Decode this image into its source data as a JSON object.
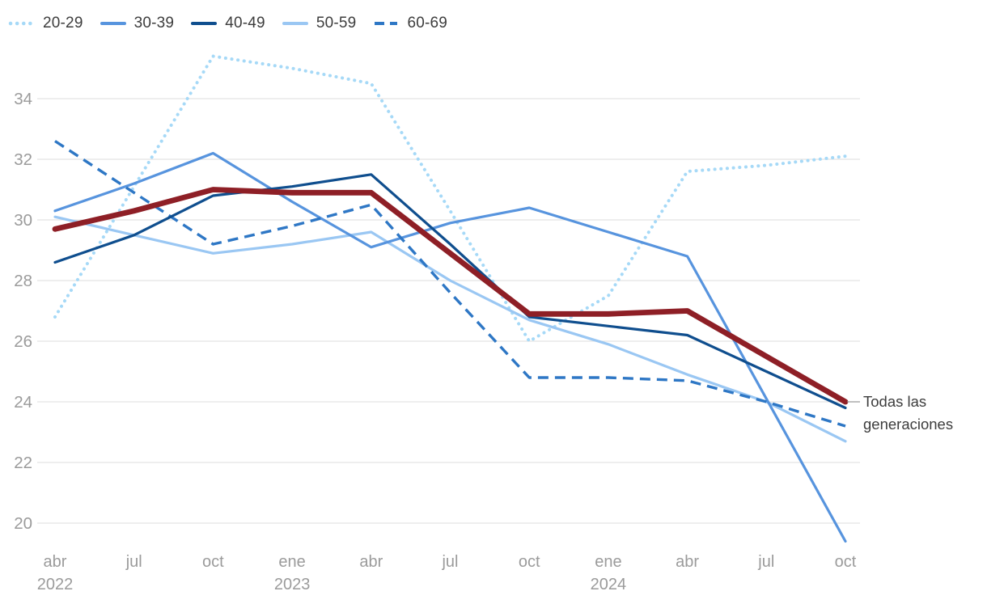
{
  "legend": {
    "items": [
      {
        "label": "20-29",
        "color": "#a6d9f7",
        "style": "dotted"
      },
      {
        "label": "30-39",
        "color": "#5794de",
        "style": "solid"
      },
      {
        "label": "40-49",
        "color": "#0f4e8e",
        "style": "solid"
      },
      {
        "label": "50-59",
        "color": "#9ac7f3",
        "style": "solid"
      },
      {
        "label": "60-69",
        "color": "#2e77c5",
        "style": "dashed"
      }
    ]
  },
  "annotation": {
    "line1": "Todas las",
    "line2": "generaciones",
    "connector_color": "#999999"
  },
  "axis": {
    "text_color": "#9b9b9b",
    "grid_color": "#e3e3e3",
    "yticks": [
      34,
      32,
      30,
      28,
      26,
      24,
      22,
      20
    ],
    "x_labels": [
      {
        "month": "abr",
        "year": "2022"
      },
      {
        "month": "jul"
      },
      {
        "month": "oct"
      },
      {
        "month": "ene",
        "year": "2023"
      },
      {
        "month": "abr"
      },
      {
        "month": "jul"
      },
      {
        "month": "oct"
      },
      {
        "month": "ene",
        "year": "2024"
      },
      {
        "month": "abr"
      },
      {
        "month": "jul"
      },
      {
        "month": "oct"
      }
    ]
  },
  "chart_data": {
    "type": "line",
    "title": "",
    "xlabel": "",
    "ylabel": "",
    "categories": [
      "abr 2022",
      "jul 2022",
      "oct 2022",
      "ene 2023",
      "abr 2023",
      "jul 2023",
      "oct 2023",
      "ene 2024",
      "abr 2024",
      "jul 2024",
      "oct 2024"
    ],
    "ylim": [
      19,
      35.5
    ],
    "yticks": [
      20,
      22,
      24,
      26,
      28,
      30,
      32,
      34
    ],
    "grid": "horizontal",
    "legend_position": "top-left",
    "series": [
      {
        "name": "20-29",
        "color": "#a6d9f7",
        "style": "dotted",
        "width": 4,
        "values": [
          26.8,
          31.1,
          35.4,
          35.0,
          34.5,
          30.3,
          26.0,
          27.5,
          31.6,
          31.8,
          32.1
        ]
      },
      {
        "name": "30-39",
        "color": "#5794de",
        "style": "solid",
        "width": 3.2,
        "values": [
          30.3,
          31.2,
          32.2,
          30.6,
          29.1,
          29.9,
          30.4,
          29.6,
          28.8,
          24.1,
          19.4
        ]
      },
      {
        "name": "40-49",
        "color": "#0f4e8e",
        "style": "solid",
        "width": 3.2,
        "values": [
          28.6,
          29.5,
          30.8,
          31.1,
          31.5,
          29.2,
          26.8,
          26.5,
          26.2,
          25.0,
          23.8
        ]
      },
      {
        "name": "50-59",
        "color": "#9ac7f3",
        "style": "solid",
        "width": 3.2,
        "values": [
          30.1,
          29.5,
          28.9,
          29.2,
          29.6,
          28.0,
          26.7,
          25.9,
          24.9,
          24.0,
          22.7
        ]
      },
      {
        "name": "60-69",
        "color": "#2e77c5",
        "style": "dashed",
        "width": 3.4,
        "values": [
          32.6,
          30.9,
          29.2,
          29.8,
          30.5,
          27.6,
          24.8,
          24.8,
          24.7,
          24.0,
          23.2
        ]
      },
      {
        "name": "Todas las generaciones",
        "color": "#8e1f26",
        "style": "solid",
        "width": 6.8,
        "emphasis": true,
        "values": [
          29.7,
          30.3,
          31.0,
          30.9,
          30.9,
          28.9,
          26.9,
          26.9,
          27.0,
          25.5,
          24.0
        ]
      }
    ]
  }
}
